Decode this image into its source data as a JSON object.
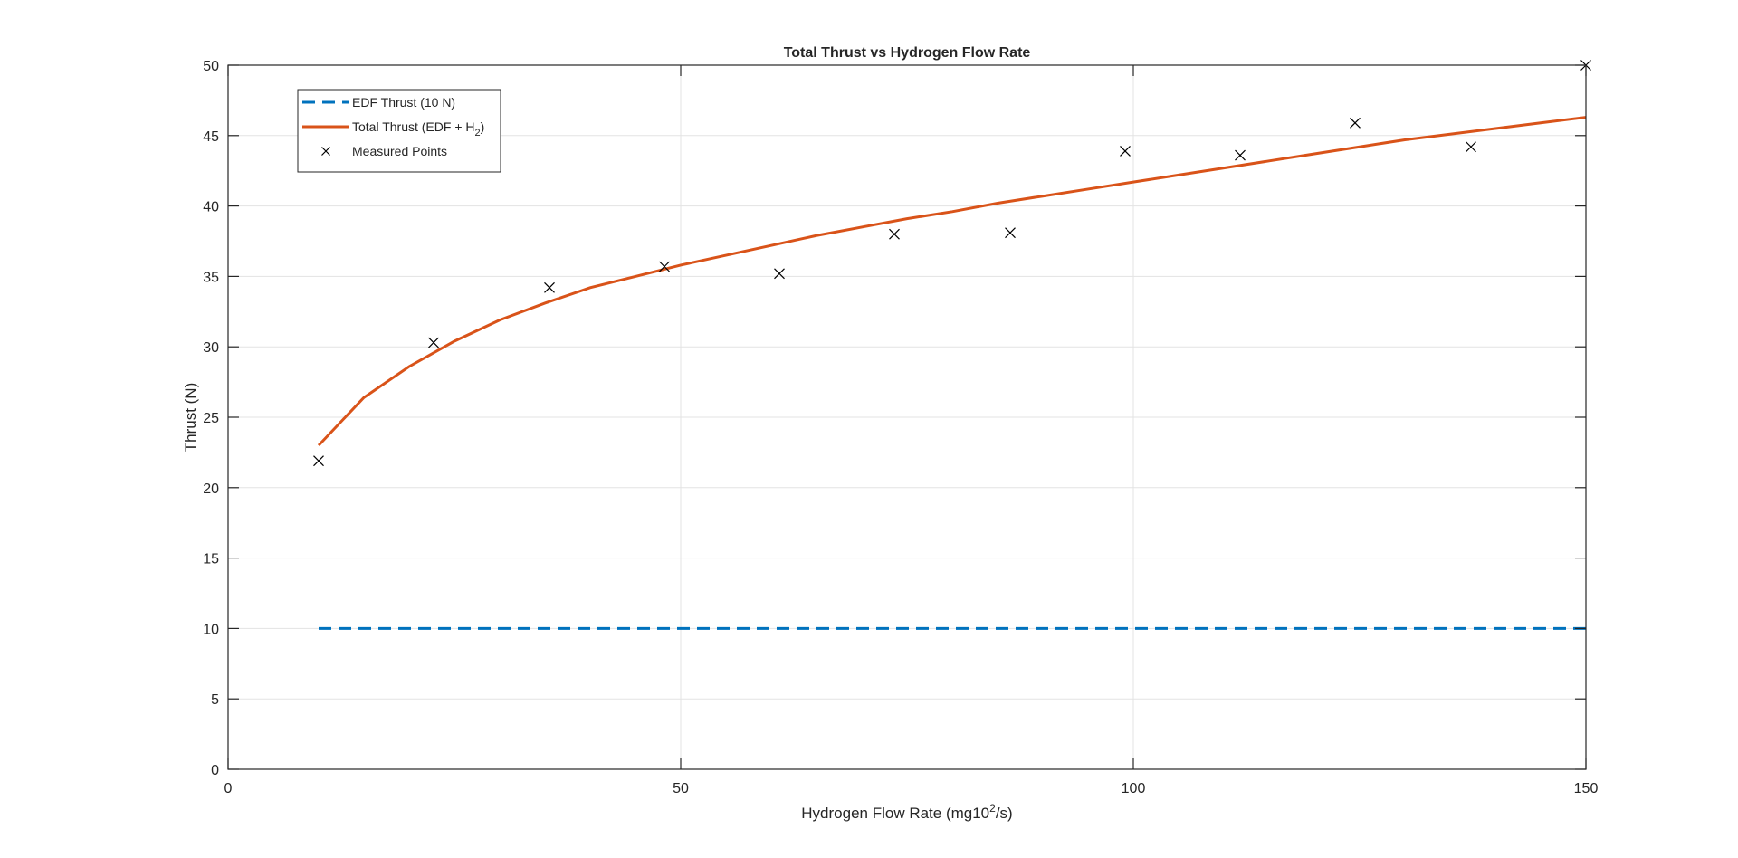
{
  "chart_data": {
    "type": "line",
    "title": "Total Thrust vs Hydrogen Flow Rate",
    "xlabel": {
      "main": "Hydrogen Flow Rate (mg10",
      "sup": "2",
      "rest": "/s)"
    },
    "ylabel": "Thrust (N)",
    "xlim": [
      0,
      150
    ],
    "ylim": [
      0,
      50
    ],
    "xticks": [
      0,
      50,
      100,
      150
    ],
    "yticks": [
      0,
      5,
      10,
      15,
      20,
      25,
      30,
      35,
      40,
      45,
      50
    ],
    "grid": true,
    "legend_position": "top-left",
    "series": [
      {
        "key": "edf",
        "legend": {
          "main": "EDF Thrust (10 N)"
        },
        "style": "dashed",
        "color": "#0072BD",
        "x": [
          10,
          150
        ],
        "y": [
          10,
          10
        ]
      },
      {
        "key": "total",
        "legend": {
          "main": "Total Thrust (EDF + H",
          "sub": "2",
          "rest": ")"
        },
        "style": "solid",
        "color": "#D95319",
        "x": [
          10,
          15,
          20,
          25,
          30,
          35,
          40,
          45,
          50,
          55,
          60,
          65,
          70,
          75,
          80,
          85,
          90,
          95,
          100,
          105,
          110,
          115,
          120,
          125,
          130,
          135,
          140,
          145,
          150
        ],
        "y": [
          23.0,
          26.4,
          28.6,
          30.4,
          31.9,
          33.1,
          34.2,
          35.0,
          35.8,
          36.5,
          37.2,
          37.9,
          38.5,
          39.1,
          39.6,
          40.2,
          40.7,
          41.2,
          41.7,
          42.2,
          42.7,
          43.2,
          43.7,
          44.2,
          44.7,
          45.1,
          45.5,
          45.9,
          46.3
        ]
      },
      {
        "key": "measured",
        "legend": {
          "main": "Measured Points"
        },
        "style": "marker-x",
        "color": "#000000",
        "x": [
          10.0,
          22.7,
          35.5,
          48.2,
          60.9,
          73.6,
          86.4,
          99.1,
          111.8,
          124.5,
          137.3,
          150.0
        ],
        "y": [
          21.9,
          30.3,
          34.2,
          35.7,
          35.2,
          38.0,
          38.1,
          43.9,
          43.6,
          45.9,
          44.2,
          50.0
        ]
      }
    ]
  }
}
